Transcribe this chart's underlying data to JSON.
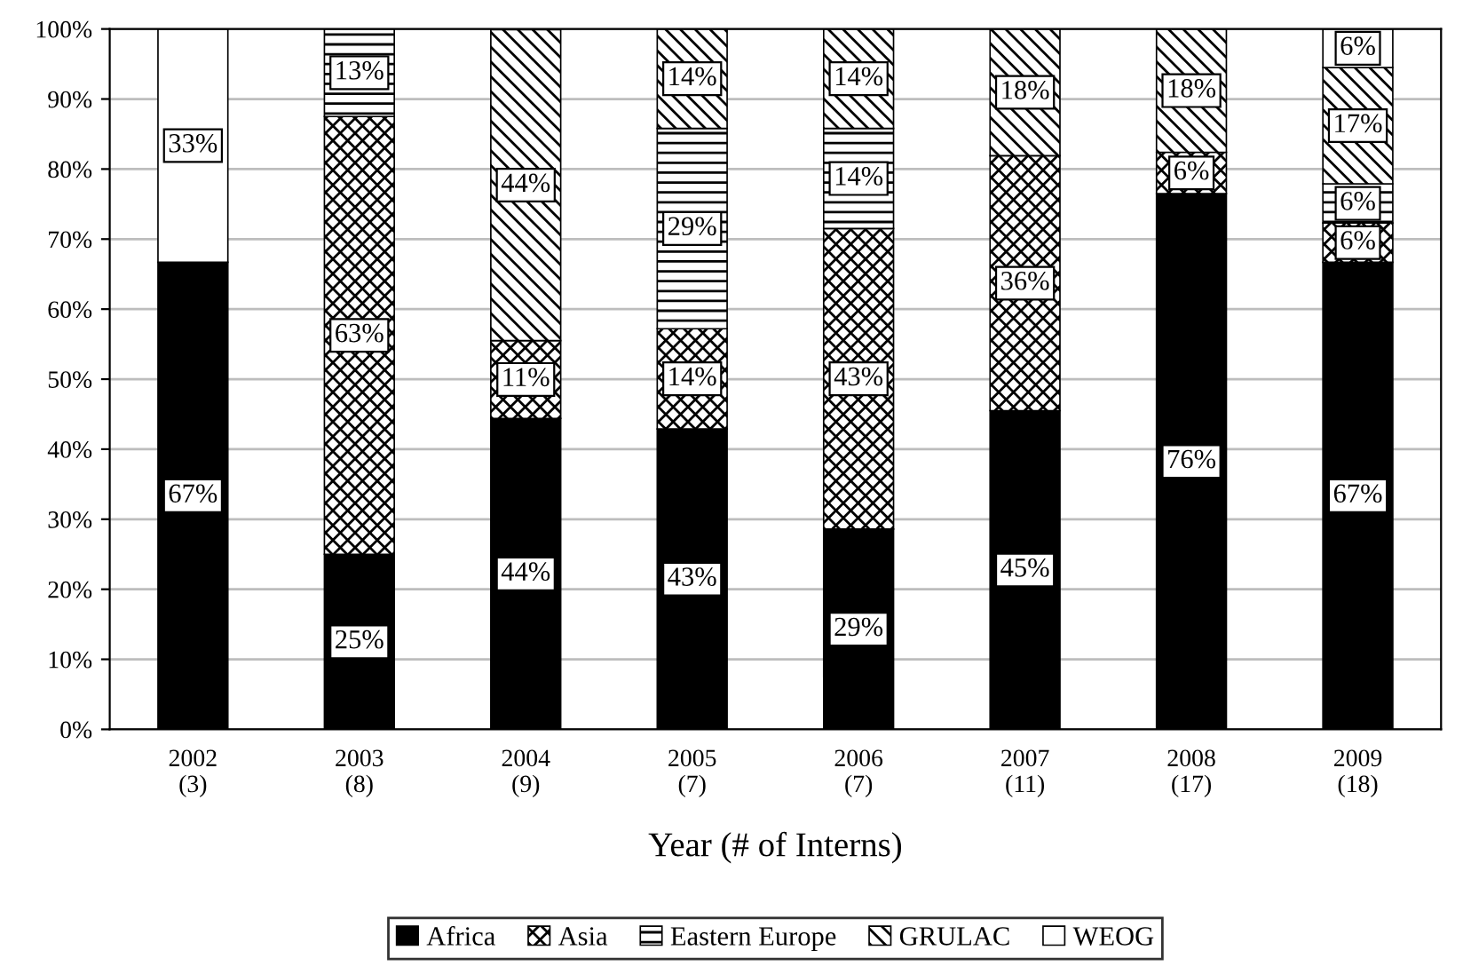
{
  "chart_data": {
    "type": "bar",
    "stacked": true,
    "xlabel": "Year (# of Interns)",
    "categories": [
      "2002\n(3)",
      "2003\n(8)",
      "2004\n(9)",
      "2005\n(7)",
      "2006\n(7)",
      "2007\n(11)",
      "2008\n(17)",
      "2009\n(18)"
    ],
    "series": [
      {
        "name": "Africa",
        "color": "#000000",
        "values": [
          66.7,
          25,
          44.4,
          42.9,
          28.6,
          45.5,
          76.5,
          66.7
        ],
        "value_labels": [
          "67%",
          "25%",
          "44%",
          "43%",
          "29%",
          "45%",
          "76%",
          "67%"
        ]
      },
      {
        "name": "Asia",
        "color": "#000000",
        "values": [
          0,
          62.5,
          11.1,
          14.3,
          42.9,
          36.4,
          5.9,
          5.6
        ],
        "value_labels": [
          null,
          "63%",
          "11%",
          "14%",
          "43%",
          "36%",
          "6%",
          "6%"
        ]
      },
      {
        "name": "Eastern Europe",
        "color": "#000000",
        "values": [
          0,
          12.5,
          0,
          28.6,
          14.3,
          0,
          0,
          5.6
        ],
        "value_labels": [
          null,
          "13%",
          null,
          "29%",
          "14%",
          null,
          null,
          "6%"
        ]
      },
      {
        "name": "GRULAC",
        "color": "#000000",
        "values": [
          0,
          0,
          44.4,
          14.2,
          14.2,
          18.1,
          17.6,
          16.6
        ],
        "value_labels": [
          null,
          null,
          "44%",
          "14%",
          "14%",
          "18%",
          "18%",
          "17%"
        ]
      },
      {
        "name": "WEOG",
        "color": "#ffffff",
        "values": [
          33.3,
          0,
          0,
          0,
          0,
          0,
          0,
          5.5
        ],
        "value_labels": [
          "33%",
          null,
          null,
          null,
          null,
          null,
          null,
          "6%"
        ]
      }
    ],
    "ylim": [
      0,
      100
    ],
    "yticks": [
      {
        "value": 0,
        "label": "0%"
      },
      {
        "value": 10,
        "label": "10%"
      },
      {
        "value": 20,
        "label": "20%"
      },
      {
        "value": 30,
        "label": "30%"
      },
      {
        "value": 40,
        "label": "40%"
      },
      {
        "value": 50,
        "label": "50%"
      },
      {
        "value": 60,
        "label": "60%"
      },
      {
        "value": 70,
        "label": "70%"
      },
      {
        "value": 80,
        "label": "80%"
      },
      {
        "value": 90,
        "label": "90%"
      },
      {
        "value": 100,
        "label": "100%"
      }
    ],
    "grid": "y",
    "legend": "bottom"
  }
}
